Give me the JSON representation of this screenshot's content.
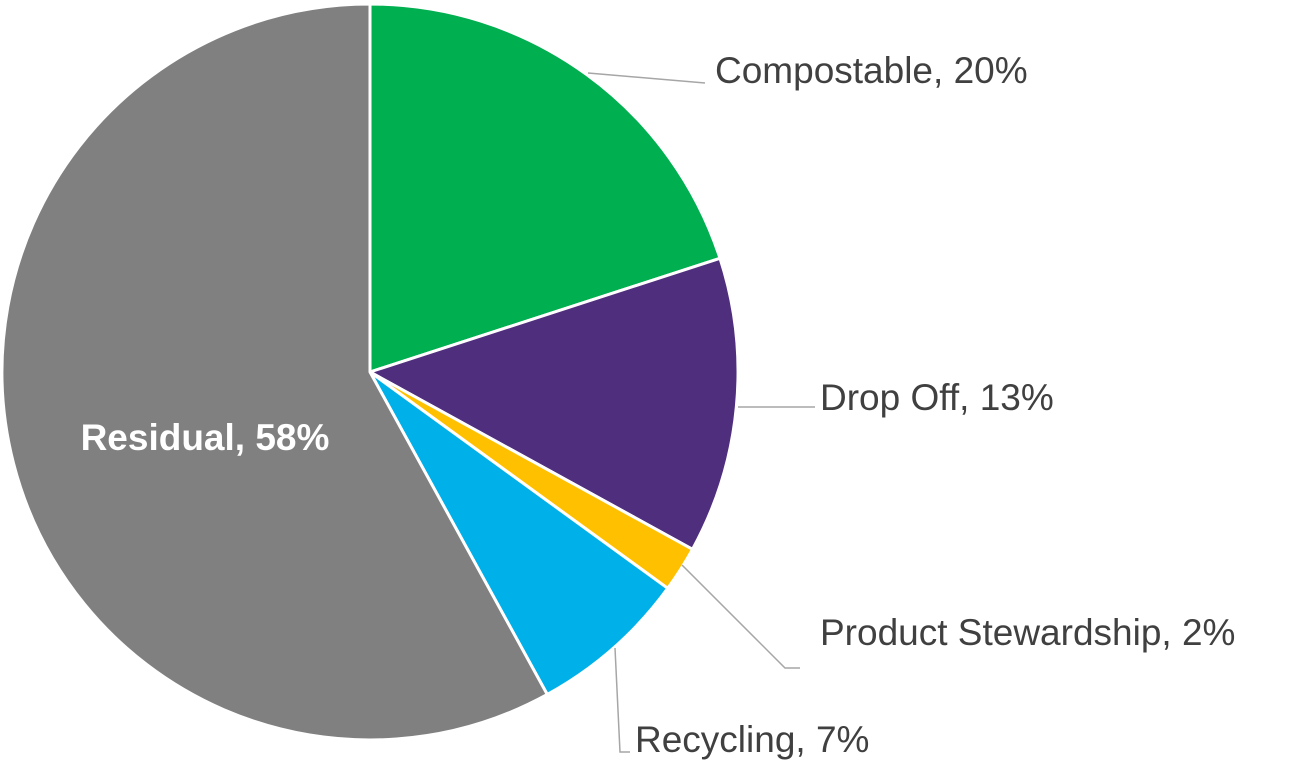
{
  "chart_data": {
    "type": "pie",
    "title": "",
    "slices": [
      {
        "label": "Compostable",
        "value": 20,
        "display": "20%",
        "color": "#00AF50"
      },
      {
        "label": "Drop Off",
        "value": 13,
        "display": "13%",
        "color": "#4F2E7E"
      },
      {
        "label": "Product Stewardship",
        "value": 2,
        "display": "2%",
        "color": "#FFC000"
      },
      {
        "label": "Recycling",
        "value": 7,
        "display": "7%",
        "color": "#00B0E8"
      },
      {
        "label": "Residual",
        "value": 58,
        "display": "58%",
        "color": "#808080"
      }
    ],
    "start_angle_deg": 0,
    "direction": "clockwise",
    "label_style": "category-and-percentage",
    "legend": "none",
    "label_text_color": "#404040",
    "inside_label_color": "#ffffff",
    "leader_line_color": "#A6A6A6",
    "slice_border_color": "#ffffff"
  }
}
